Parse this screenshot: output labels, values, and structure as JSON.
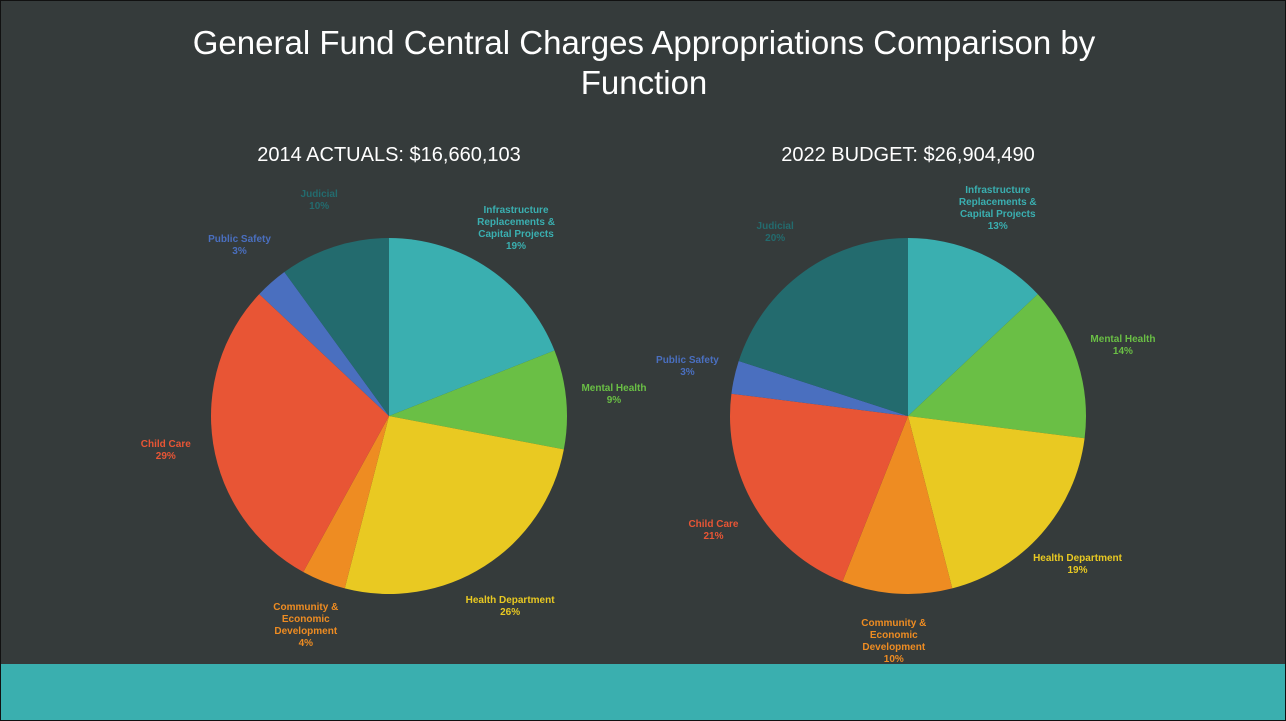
{
  "title": "General Fund Central Charges Appropriations Comparison by Function",
  "chart_data": [
    {
      "type": "pie",
      "title": "2014 ACTUALS: $16,660,103",
      "categories": [
        "Infrastructure Replacements & Capital Projects",
        "Mental Health",
        "Health Department",
        "Community & Economic Development",
        "Child Care",
        "Public Safety",
        "Judicial"
      ],
      "values": [
        19,
        9,
        26,
        4,
        29,
        3,
        10
      ],
      "value_labels": [
        "19%",
        "9%",
        "26%",
        "4%",
        "29%",
        "3%",
        "10%"
      ],
      "colors": [
        "#3aafb0",
        "#6abf45",
        "#e9c922",
        "#ee8c22",
        "#e85535",
        "#4a6fbf",
        "#236b6e"
      ]
    },
    {
      "type": "pie",
      "title": "2022 BUDGET: $26,904,490",
      "categories": [
        "Infrastructure Replacements & Capital Projects",
        "Mental Health",
        "Health Department",
        "Community & Economic Development",
        "Child Care",
        "Public Safety",
        "Judicial"
      ],
      "values": [
        13,
        14,
        19,
        10,
        21,
        3,
        20
      ],
      "value_labels": [
        "13%",
        "14%",
        "19%",
        "10%",
        "21%",
        "3%",
        "20%"
      ],
      "colors": [
        "#3aafb0",
        "#6abf45",
        "#e9c922",
        "#ee8c22",
        "#e85535",
        "#4a6fbf",
        "#236b6e"
      ]
    }
  ]
}
